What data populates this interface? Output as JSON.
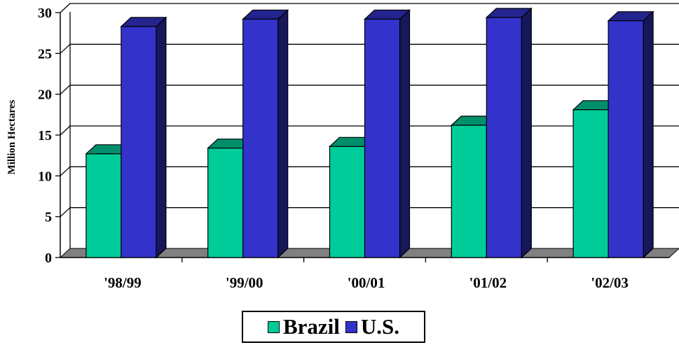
{
  "chart_data": {
    "type": "bar",
    "ylabel": "Million Hectares",
    "ylim": [
      0,
      30
    ],
    "yticks": [
      "0",
      "5",
      "10",
      "15",
      "20",
      "25",
      "30"
    ],
    "categories": [
      "'98/99",
      "'99/00",
      "'00/01",
      "'01/02",
      "'02/03"
    ],
    "series": [
      {
        "name": "Brazil",
        "values": [
          12.7,
          13.4,
          13.6,
          16.2,
          18.1
        ],
        "color": "#00cc99"
      },
      {
        "name": "U.S.",
        "values": [
          28.3,
          29.2,
          29.2,
          29.4,
          29.0
        ],
        "color": "#3333cc"
      }
    ],
    "grid": true,
    "legend_position": "bottom"
  }
}
